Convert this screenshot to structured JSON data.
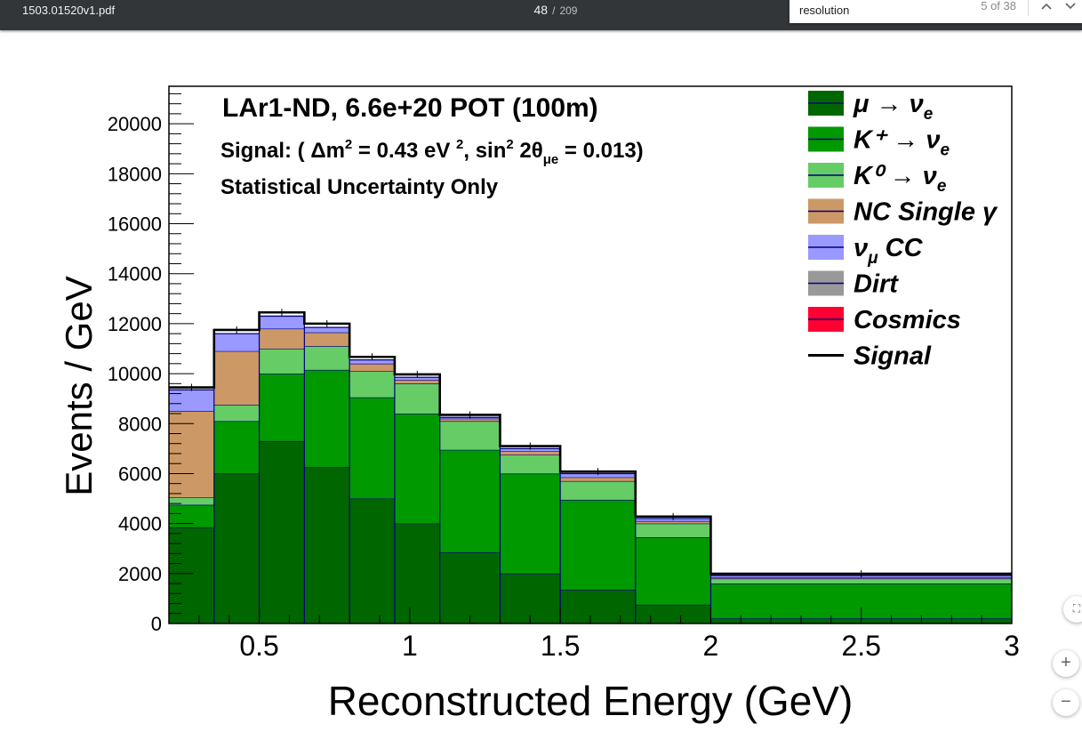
{
  "toolbar": {
    "title": "1503.01520v1.pdf",
    "page_current": "48",
    "page_sep": "/",
    "page_total": "209"
  },
  "find": {
    "query": "resolution",
    "count": "5 of 38",
    "prev_icon": "chevron-up-icon",
    "next_icon": "chevron-down-icon"
  },
  "zoom": {
    "fit_icon": "fit-page-icon",
    "in_label": "+",
    "out_label": "−"
  },
  "chart_data": {
    "type": "bar",
    "stacked": true,
    "title": "LAr1-ND, 6.6e+20 POT (100m)",
    "subtitle_parts": {
      "a": "Signal: ( Δm",
      "b": "2",
      "c": " = 0.43 eV ",
      "d": "2",
      "e": ", sin",
      "f": "2",
      "g": " 2θ",
      "h": "μe",
      "i": " = 0.013)"
    },
    "subtitle2": "Statistical Uncertainty Only",
    "xlabel": "Reconstructed Energy (GeV)",
    "ylabel": "Events / GeV",
    "xlim": [
      0.2,
      3.0
    ],
    "ylim": [
      0,
      21500
    ],
    "xticks": [
      0.5,
      1,
      1.5,
      2,
      2.5,
      3
    ],
    "xtick_labels": [
      "0.5",
      "1",
      "1.5",
      "2",
      "2.5",
      "3"
    ],
    "yticks": [
      0,
      2000,
      4000,
      6000,
      8000,
      10000,
      12000,
      14000,
      16000,
      18000,
      20000
    ],
    "ytick_labels": [
      "0",
      "2000",
      "4000",
      "6000",
      "8000",
      "10000",
      "12000",
      "14000",
      "16000",
      "18000",
      "20000"
    ],
    "bin_edges": [
      0.2,
      0.35,
      0.5,
      0.65,
      0.8,
      0.95,
      1.1,
      1.3,
      1.5,
      1.75,
      2.0,
      3.0
    ],
    "series": [
      {
        "name": "μ → ν",
        "sub": "e",
        "color": "#006600",
        "values": [
          3850,
          6000,
          7300,
          6250,
          5000,
          4000,
          2850,
          2000,
          1350,
          750,
          200
        ]
      },
      {
        "name": "K⁺ → ν",
        "sub": "e",
        "color": "#009900",
        "values": [
          900,
          2100,
          2700,
          3900,
          4050,
          4400,
          4100,
          4000,
          3600,
          2700,
          1400
        ]
      },
      {
        "name": "K⁰ → ν",
        "sub": "e",
        "color": "#66cc66",
        "values": [
          300,
          650,
          1000,
          950,
          1050,
          1200,
          1150,
          750,
          750,
          550,
          200
        ]
      },
      {
        "name": "NC Single γ",
        "sub": "",
        "color": "#cc9966",
        "values": [
          3450,
          2150,
          800,
          550,
          300,
          150,
          100,
          150,
          150,
          100,
          50
        ]
      },
      {
        "name": "ν",
        "sub": "μ",
        "name2": " CC",
        "color": "#9999ff",
        "values": [
          850,
          700,
          500,
          200,
          150,
          100,
          50,
          100,
          150,
          100,
          70
        ]
      },
      {
        "name": "Dirt",
        "sub": "",
        "color": "#999999",
        "values": [
          0,
          0,
          0,
          0,
          0,
          0,
          0,
          0,
          0,
          0,
          0
        ]
      },
      {
        "name": "Cosmics",
        "sub": "",
        "color": "#ff0033",
        "values": [
          0,
          0,
          0,
          0,
          0,
          0,
          0,
          0,
          0,
          0,
          0
        ]
      }
    ],
    "signal": {
      "name": "Signal",
      "color": "#000000",
      "values": [
        100,
        150,
        150,
        150,
        120,
        120,
        100,
        100,
        80,
        80,
        70
      ]
    },
    "legend": "top-right",
    "grid": false
  }
}
